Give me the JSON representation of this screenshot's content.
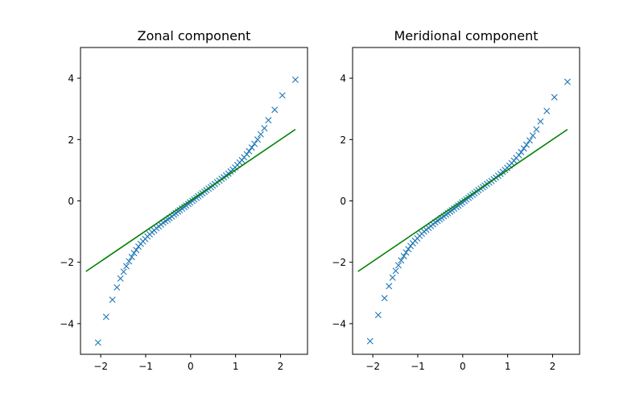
{
  "chart_data": [
    {
      "type": "scatter",
      "title": "Zonal component",
      "xlabel": "",
      "ylabel": "",
      "xlim": [
        -2.45,
        2.6
      ],
      "ylim": [
        -5.0,
        5.0
      ],
      "x_ticks": [
        -2,
        -1,
        0,
        1,
        2
      ],
      "x_tick_labels": [
        "−2",
        "−1",
        "0",
        "1",
        "2"
      ],
      "y_ticks": [
        -4,
        -2,
        0,
        2,
        4
      ],
      "y_tick_labels": [
        "−4",
        "−2",
        "0",
        "2",
        "4"
      ],
      "grid": false,
      "series": [
        {
          "kind": "scatter",
          "marker": "x",
          "color": "#1f77b4",
          "points": [
            [
              -2.06,
              -4.62
            ],
            [
              -1.88,
              -3.78
            ],
            [
              -1.74,
              -3.22
            ],
            [
              -1.64,
              -2.82
            ],
            [
              -1.56,
              -2.53
            ],
            [
              -1.49,
              -2.31
            ],
            [
              -1.43,
              -2.13
            ],
            [
              -1.37,
              -1.97
            ],
            [
              -1.31,
              -1.83
            ],
            [
              -1.26,
              -1.7
            ],
            [
              -1.21,
              -1.6
            ],
            [
              -1.16,
              -1.49
            ],
            [
              -1.11,
              -1.4
            ],
            [
              -1.06,
              -1.32
            ],
            [
              -1.01,
              -1.24
            ],
            [
              -0.96,
              -1.16
            ],
            [
              -0.91,
              -1.09
            ],
            [
              -0.86,
              -1.02
            ],
            [
              -0.81,
              -0.96
            ],
            [
              -0.76,
              -0.89
            ],
            [
              -0.71,
              -0.83
            ],
            [
              -0.66,
              -0.77
            ],
            [
              -0.61,
              -0.71
            ],
            [
              -0.56,
              -0.66
            ],
            [
              -0.51,
              -0.61
            ],
            [
              -0.47,
              -0.56
            ],
            [
              -0.42,
              -0.51
            ],
            [
              -0.37,
              -0.45
            ],
            [
              -0.33,
              -0.4
            ],
            [
              -0.28,
              -0.35
            ],
            [
              -0.24,
              -0.3
            ],
            [
              -0.19,
              -0.25
            ],
            [
              -0.14,
              -0.2
            ],
            [
              -0.1,
              -0.15
            ],
            [
              -0.05,
              -0.1
            ],
            [
              -0.01,
              -0.05
            ],
            [
              0.04,
              0.0
            ],
            [
              0.08,
              0.05
            ],
            [
              0.13,
              0.1
            ],
            [
              0.17,
              0.15
            ],
            [
              0.22,
              0.2
            ],
            [
              0.26,
              0.25
            ],
            [
              0.31,
              0.3
            ],
            [
              0.35,
              0.35
            ],
            [
              0.4,
              0.4
            ],
            [
              0.45,
              0.45
            ],
            [
              0.49,
              0.5
            ],
            [
              0.54,
              0.55
            ],
            [
              0.59,
              0.61
            ],
            [
              0.64,
              0.66
            ],
            [
              0.69,
              0.72
            ],
            [
              0.74,
              0.77
            ],
            [
              0.79,
              0.83
            ],
            [
              0.84,
              0.89
            ],
            [
              0.89,
              0.96
            ],
            [
              0.94,
              1.02
            ],
            [
              0.99,
              1.09
            ],
            [
              1.04,
              1.17
            ],
            [
              1.09,
              1.25
            ],
            [
              1.14,
              1.33
            ],
            [
              1.19,
              1.42
            ],
            [
              1.25,
              1.52
            ],
            [
              1.3,
              1.62
            ],
            [
              1.36,
              1.74
            ],
            [
              1.42,
              1.86
            ],
            [
              1.49,
              2.0
            ],
            [
              1.56,
              2.17
            ],
            [
              1.64,
              2.37
            ],
            [
              1.73,
              2.63
            ],
            [
              1.87,
              2.97
            ],
            [
              2.04,
              3.44
            ],
            [
              2.33,
              3.95
            ]
          ]
        },
        {
          "kind": "line",
          "color": "#008000",
          "points": [
            [
              -2.33,
              -2.3
            ],
            [
              2.33,
              2.33
            ]
          ]
        }
      ]
    },
    {
      "type": "scatter",
      "title": "Meridional component",
      "xlabel": "",
      "ylabel": "",
      "xlim": [
        -2.45,
        2.6
      ],
      "ylim": [
        -5.0,
        5.0
      ],
      "x_ticks": [
        -2,
        -1,
        0,
        1,
        2
      ],
      "x_tick_labels": [
        "−2",
        "−1",
        "0",
        "1",
        "2"
      ],
      "y_ticks": [
        -4,
        -2,
        0,
        2,
        4
      ],
      "y_tick_labels": [
        "−4",
        "−2",
        "0",
        "2",
        "4"
      ],
      "grid": false,
      "series": [
        {
          "kind": "scatter",
          "marker": "x",
          "color": "#1f77b4",
          "points": [
            [
              -2.06,
              -4.57
            ],
            [
              -1.88,
              -3.72
            ],
            [
              -1.74,
              -3.17
            ],
            [
              -1.64,
              -2.78
            ],
            [
              -1.56,
              -2.5
            ],
            [
              -1.49,
              -2.28
            ],
            [
              -1.43,
              -2.1
            ],
            [
              -1.37,
              -1.94
            ],
            [
              -1.31,
              -1.8
            ],
            [
              -1.26,
              -1.68
            ],
            [
              -1.21,
              -1.57
            ],
            [
              -1.16,
              -1.47
            ],
            [
              -1.11,
              -1.38
            ],
            [
              -1.06,
              -1.3
            ],
            [
              -1.01,
              -1.22
            ],
            [
              -0.96,
              -1.14
            ],
            [
              -0.91,
              -1.07
            ],
            [
              -0.86,
              -1.0
            ],
            [
              -0.81,
              -0.94
            ],
            [
              -0.76,
              -0.88
            ],
            [
              -0.71,
              -0.82
            ],
            [
              -0.66,
              -0.76
            ],
            [
              -0.61,
              -0.7
            ],
            [
              -0.56,
              -0.65
            ],
            [
              -0.51,
              -0.6
            ],
            [
              -0.47,
              -0.55
            ],
            [
              -0.42,
              -0.5
            ],
            [
              -0.37,
              -0.45
            ],
            [
              -0.33,
              -0.4
            ],
            [
              -0.28,
              -0.35
            ],
            [
              -0.24,
              -0.3
            ],
            [
              -0.19,
              -0.25
            ],
            [
              -0.14,
              -0.2
            ],
            [
              -0.1,
              -0.15
            ],
            [
              -0.05,
              -0.1
            ],
            [
              -0.01,
              -0.05
            ],
            [
              0.04,
              0.0
            ],
            [
              0.08,
              0.05
            ],
            [
              0.13,
              0.1
            ],
            [
              0.17,
              0.15
            ],
            [
              0.22,
              0.2
            ],
            [
              0.26,
              0.25
            ],
            [
              0.31,
              0.3
            ],
            [
              0.35,
              0.35
            ],
            [
              0.4,
              0.4
            ],
            [
              0.45,
              0.45
            ],
            [
              0.49,
              0.5
            ],
            [
              0.54,
              0.55
            ],
            [
              0.59,
              0.6
            ],
            [
              0.64,
              0.65
            ],
            [
              0.69,
              0.71
            ],
            [
              0.74,
              0.76
            ],
            [
              0.79,
              0.82
            ],
            [
              0.84,
              0.88
            ],
            [
              0.89,
              0.95
            ],
            [
              0.94,
              1.01
            ],
            [
              0.99,
              1.08
            ],
            [
              1.04,
              1.15
            ],
            [
              1.09,
              1.23
            ],
            [
              1.14,
              1.31
            ],
            [
              1.19,
              1.4
            ],
            [
              1.25,
              1.49
            ],
            [
              1.3,
              1.59
            ],
            [
              1.36,
              1.71
            ],
            [
              1.42,
              1.83
            ],
            [
              1.49,
              1.97
            ],
            [
              1.56,
              2.13
            ],
            [
              1.64,
              2.33
            ],
            [
              1.73,
              2.59
            ],
            [
              1.87,
              2.93
            ],
            [
              2.04,
              3.38
            ],
            [
              2.33,
              3.88
            ]
          ]
        },
        {
          "kind": "line",
          "color": "#008000",
          "points": [
            [
              -2.33,
              -2.3
            ],
            [
              2.33,
              2.33
            ]
          ]
        }
      ]
    }
  ]
}
